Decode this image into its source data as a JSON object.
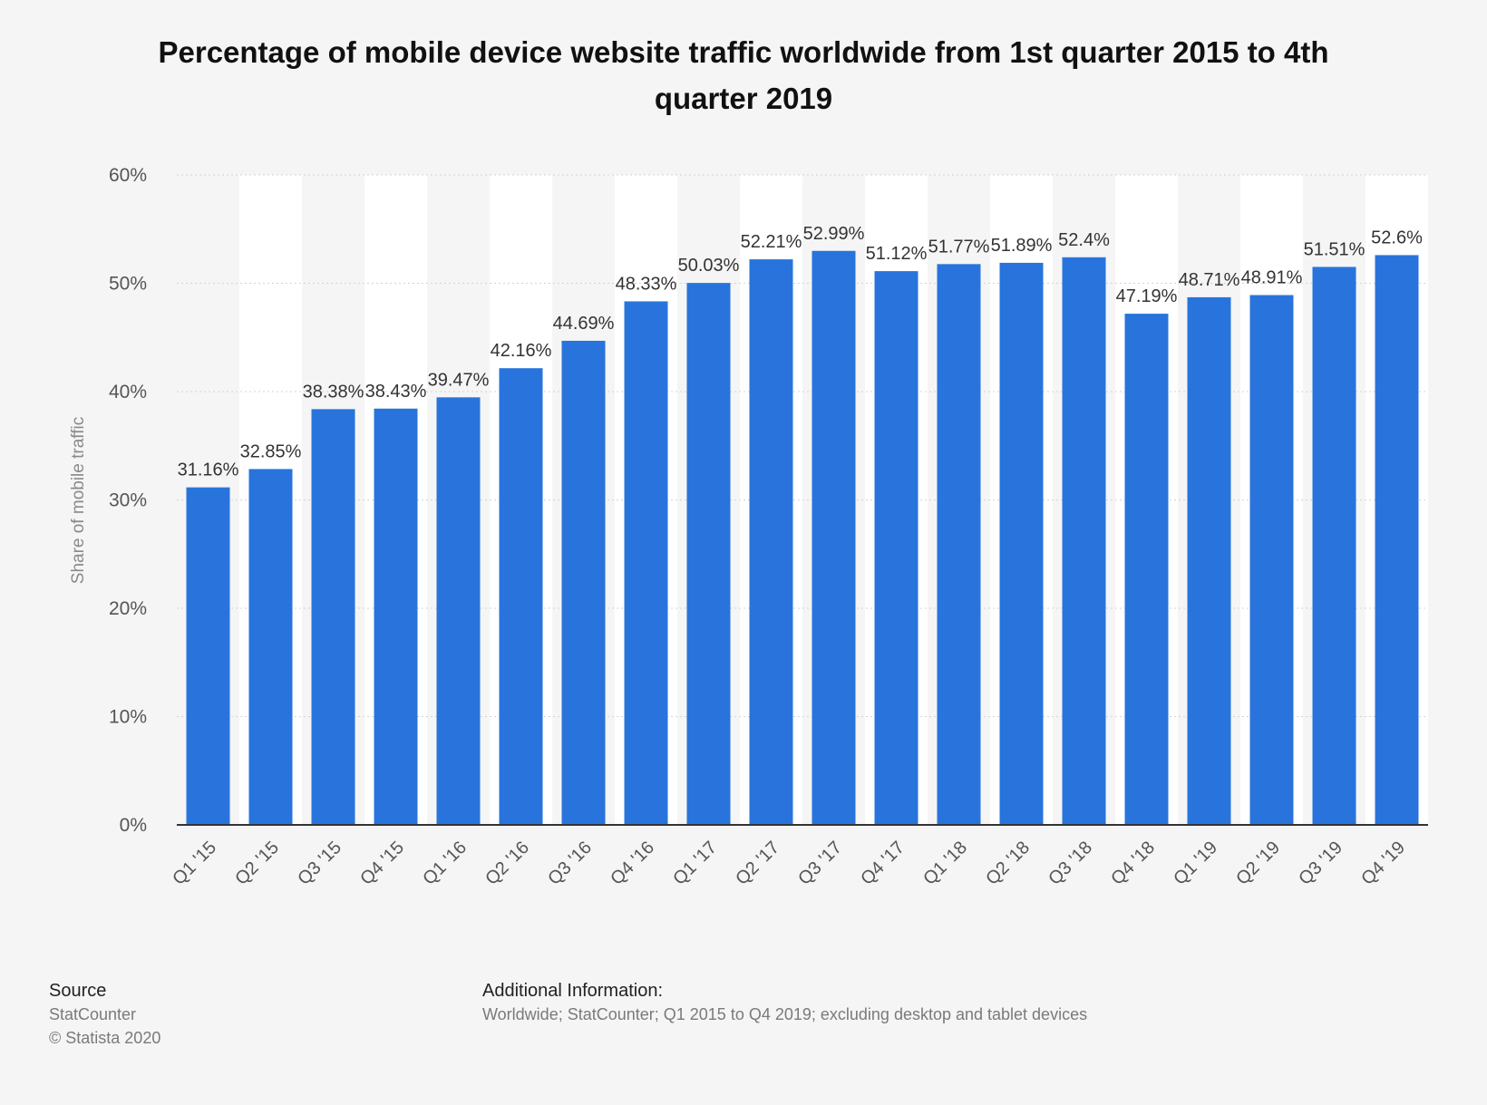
{
  "chart_data": {
    "type": "bar",
    "title": "Percentage of mobile device website traffic worldwide from 1st quarter 2015 to 4th quarter 2019",
    "ylabel": "Share of mobile traffic",
    "xlabel": "",
    "ylim": [
      0,
      60
    ],
    "yticks": [
      "0%",
      "10%",
      "20%",
      "30%",
      "40%",
      "50%",
      "60%"
    ],
    "grid": true,
    "categories": [
      "Q1 '15",
      "Q2 '15",
      "Q3 '15",
      "Q4 '15",
      "Q1 '16",
      "Q2 '16",
      "Q3 '16",
      "Q4 '16",
      "Q1 '17",
      "Q2 '17",
      "Q3 '17",
      "Q4 '17",
      "Q1 '18",
      "Q2 '18",
      "Q3 '18",
      "Q4 '18",
      "Q1 '19",
      "Q2 '19",
      "Q3 '19",
      "Q4 '19"
    ],
    "values": [
      31.16,
      32.85,
      38.38,
      38.43,
      39.47,
      42.16,
      44.69,
      48.33,
      50.03,
      52.21,
      52.99,
      51.12,
      51.77,
      51.89,
      52.4,
      47.19,
      48.71,
      48.91,
      51.51,
      52.6
    ],
    "data_labels": [
      "31.16%",
      "32.85%",
      "38.38%",
      "38.43%",
      "39.47%",
      "42.16%",
      "44.69%",
      "48.33%",
      "50.03%",
      "52.21%",
      "52.99%",
      "51.12%",
      "51.77%",
      "51.89%",
      "52.4%",
      "47.19%",
      "48.71%",
      "48.91%",
      "51.51%",
      "52.6%"
    ],
    "colors": {
      "bar": "#2874dc",
      "grid": "#d4d4d4",
      "axis": "#333333",
      "band": "#ffffff",
      "background": "#f5f5f5"
    }
  },
  "footer": {
    "source_heading": "Source",
    "source_name": "StatCounter",
    "copyright": "© Statista 2020",
    "info_heading": "Additional Information:",
    "info_text": "Worldwide; StatCounter; Q1 2015 to Q4 2019; excluding desktop and tablet devices"
  }
}
